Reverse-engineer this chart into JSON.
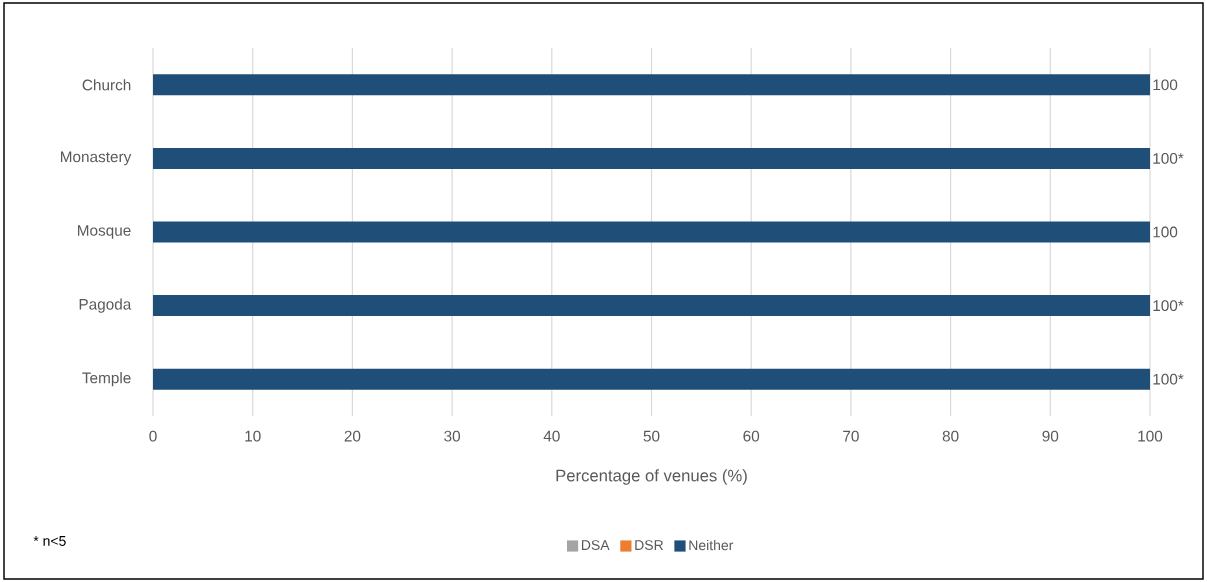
{
  "chart_data": {
    "type": "bar",
    "orientation": "horizontal",
    "stacked": true,
    "categories": [
      "Church",
      "Monastery",
      "Mosque",
      "Pagoda",
      "Temple"
    ],
    "series": [
      {
        "name": "DSA",
        "color": "#a5a5a5",
        "values": [
          0,
          0,
          0,
          0,
          0
        ]
      },
      {
        "name": "DSR",
        "color": "#ed7d31",
        "values": [
          0,
          0,
          0,
          0,
          0
        ]
      },
      {
        "name": "Neither",
        "color": "#1f4e79",
        "values": [
          100,
          100,
          100,
          100,
          100
        ],
        "value_labels": [
          "100",
          "100*",
          "100",
          "100*",
          "100*"
        ]
      }
    ],
    "xlim": [
      0,
      100
    ],
    "xticks": [
      0,
      10,
      20,
      30,
      40,
      50,
      60,
      70,
      80,
      90,
      100
    ],
    "xlabel": "Percentage of venues (%)",
    "grid": "x",
    "legend": "bottom",
    "annotations": [
      "* n<5"
    ]
  }
}
